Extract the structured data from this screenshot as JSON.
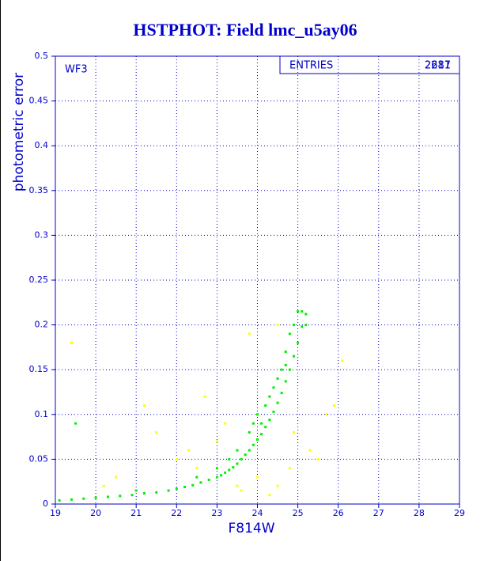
{
  "chart_data": {
    "type": "scatter",
    "title": "HSTPHOT: Field lmc_u5ay06",
    "x_label": "F814W",
    "y_label": "photometric error",
    "annotation": "WF3",
    "stats_label": "ENTRIES",
    "stats_values": [
      "2617",
      "2281"
    ],
    "xlim": [
      19,
      29
    ],
    "ylim": [
      0,
      0.5
    ],
    "xticks": [
      19,
      20,
      21,
      22,
      23,
      24,
      25,
      26,
      27,
      28,
      29
    ],
    "yticks": [
      0,
      0.05,
      0.1,
      0.15,
      0.2,
      0.25,
      0.3,
      0.35,
      0.4,
      0.45,
      0.5
    ],
    "grid": true,
    "axis_color": "#0000cc",
    "series": [
      {
        "color": "#ffff00",
        "x": [
          20.5,
          21.2,
          21.5,
          22.0,
          22.5,
          22.7,
          23.0,
          23.2,
          23.5,
          24.0,
          24.3,
          24.5,
          24.8,
          25.3,
          25.7,
          26.1,
          25.9,
          23.8,
          24.5,
          19.4,
          20.2,
          22.3,
          23.6,
          24.9,
          25.5
        ],
        "values": [
          0.03,
          0.11,
          0.08,
          0.05,
          0.04,
          0.12,
          0.07,
          0.09,
          0.02,
          0.03,
          0.01,
          0.02,
          0.04,
          0.06,
          0.1,
          0.16,
          0.11,
          0.19,
          0.2,
          0.18,
          0.02,
          0.06,
          0.015,
          0.08,
          0.05
        ]
      },
      {
        "color": "#00ee00",
        "x": [
          19.1,
          19.4,
          19.7,
          20.0,
          20.3,
          20.6,
          20.9,
          21.2,
          21.5,
          21.8,
          22.0,
          22.2,
          22.4,
          22.6,
          22.8,
          23.0,
          23.1,
          23.2,
          23.3,
          23.4,
          23.5,
          23.6,
          23.7,
          23.8,
          23.9,
          24.0,
          24.1,
          24.2,
          24.3,
          24.4,
          24.5,
          24.6,
          24.7,
          24.8,
          24.9,
          25.0,
          25.1,
          25.2,
          22.5,
          23.0,
          23.5,
          23.8,
          24.0,
          24.3,
          24.5,
          24.7,
          24.9,
          25.0,
          25.2,
          24.8,
          24.6,
          24.2,
          19.5,
          21.0,
          23.3,
          23.9,
          24.1,
          24.4,
          25.1,
          24.7
        ],
        "values": [
          0.004,
          0.005,
          0.006,
          0.007,
          0.008,
          0.009,
          0.01,
          0.012,
          0.013,
          0.015,
          0.017,
          0.019,
          0.021,
          0.024,
          0.027,
          0.03,
          0.032,
          0.035,
          0.038,
          0.041,
          0.045,
          0.05,
          0.055,
          0.06,
          0.066,
          0.072,
          0.078,
          0.086,
          0.094,
          0.103,
          0.113,
          0.124,
          0.137,
          0.15,
          0.165,
          0.18,
          0.198,
          0.212,
          0.03,
          0.04,
          0.06,
          0.08,
          0.1,
          0.12,
          0.14,
          0.17,
          0.2,
          0.215,
          0.2,
          0.19,
          0.15,
          0.11,
          0.09,
          0.015,
          0.05,
          0.09,
          0.09,
          0.13,
          0.215,
          0.155
        ]
      }
    ]
  }
}
